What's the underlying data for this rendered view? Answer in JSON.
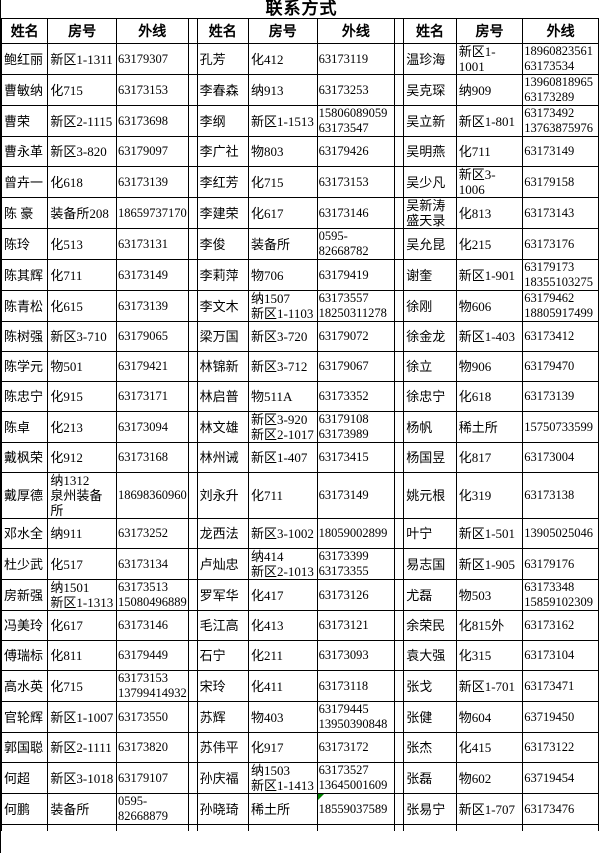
{
  "title": "联系方式",
  "columns": [
    "姓名",
    "房号",
    "外线"
  ],
  "marker_color": "#008000",
  "groups": [
    {
      "rows": [
        {
          "name": "鲍红丽",
          "room": "新区1-1311",
          "phone": "63179307"
        },
        {
          "name": "曹敏纳",
          "room": "化715",
          "phone": "63173153"
        },
        {
          "name": "曹荣",
          "room": "新区2-1115",
          "phone": "63173698"
        },
        {
          "name": "曹永革",
          "room": "新区3-820",
          "phone": "63179097"
        },
        {
          "name": "曾卉一",
          "room": "化618",
          "phone": "63173139"
        },
        {
          "name": "陈 豪",
          "room": "装备所208",
          "phone": "18659737170"
        },
        {
          "name": "陈玲",
          "room": "化513",
          "phone": "63173131"
        },
        {
          "name": "陈其辉",
          "room": "化711",
          "phone": "63173149"
        },
        {
          "name": "陈青松",
          "room": "化615",
          "phone": "63173139"
        },
        {
          "name": "陈树强",
          "room": "新区3-710",
          "phone": "63179065"
        },
        {
          "name": "陈学元",
          "room": "物501",
          "phone": "63179421"
        },
        {
          "name": "陈忠宁",
          "room": "化915",
          "phone": "63173171"
        },
        {
          "name": "陈卓",
          "room": "化213",
          "phone": "63173094"
        },
        {
          "name": "戴枫荣",
          "room": "化912",
          "phone": "63173168"
        },
        {
          "name": "戴厚德",
          "room": "纳1312\n泉州装备所",
          "phone": "18698360960"
        },
        {
          "name": "邓水全",
          "room": "纳911",
          "phone": "63173252"
        },
        {
          "name": "杜少武",
          "room": "化517",
          "phone": "63173134"
        },
        {
          "name": "房新强",
          "room": "纳1501\n新区1-1313",
          "phone": "63173513\n15080496889"
        },
        {
          "name": "冯美玲",
          "room": "化617",
          "phone": "63173146"
        },
        {
          "name": "傅瑞标",
          "room": "化811",
          "phone": "63179449"
        },
        {
          "name": "高水英",
          "room": "化715",
          "phone": "63173153\n13799414932"
        },
        {
          "name": "官轮辉",
          "room": "新区1-1007",
          "phone": "63173550"
        },
        {
          "name": "郭国聪",
          "room": "新区2-1111",
          "phone": "63173820"
        },
        {
          "name": "何超",
          "room": "新区3-1018",
          "phone": "63179107"
        },
        {
          "name": "何鹏",
          "room": "装备所",
          "phone": "0595-\n82668879"
        }
      ]
    },
    {
      "rows": [
        {
          "name": "孔芳",
          "room": "化412",
          "phone": "63173119"
        },
        {
          "name": "李春森",
          "room": "纳913",
          "phone": "63173253"
        },
        {
          "name": "李纲",
          "room": "新区1-1513",
          "phone": "15806089059\n63173547"
        },
        {
          "name": "李广社",
          "room": "物803",
          "phone": "63179426"
        },
        {
          "name": "李红芳",
          "room": "化715",
          "phone": "63173153"
        },
        {
          "name": "李建荣",
          "room": "化617",
          "phone": "63173146"
        },
        {
          "name": "李俊",
          "room": "装备所",
          "phone": "0595-82668782"
        },
        {
          "name": "李莉萍",
          "room": "物706",
          "phone": "63179419"
        },
        {
          "name": "李文木",
          "room": "纳1507\n新区1-1103",
          "phone": "63173557\n18250311278"
        },
        {
          "name": "梁万国",
          "room": "新区3-720",
          "phone": "63179072"
        },
        {
          "name": "林锦新",
          "room": "新区3-712",
          "phone": "63179067"
        },
        {
          "name": "林启普",
          "room": "物511A",
          "phone": "63173352"
        },
        {
          "name": "林文雄",
          "room": "新区3-920\n新区2-1017",
          "phone": "63179108\n63173989"
        },
        {
          "name": "林州诫",
          "room": "新区1-407",
          "phone": "63173415"
        },
        {
          "name": "刘永升",
          "room": "化711",
          "phone": "63173149"
        },
        {
          "name": "龙西法",
          "room": "新区3-1002",
          "phone": "18059002899"
        },
        {
          "name": "卢灿忠",
          "room": "纳414\n新区2-1013",
          "phone": "63173399\n63173355"
        },
        {
          "name": "罗军华",
          "room": "化417",
          "phone": "63173126"
        },
        {
          "name": "毛江高",
          "room": "化413",
          "phone": "63173121"
        },
        {
          "name": "石宁",
          "room": "化211",
          "phone": "63173093"
        },
        {
          "name": "宋玲",
          "room": "化411",
          "phone": "63173118"
        },
        {
          "name": "苏辉",
          "room": "物403",
          "phone": "63179445\n13950390848"
        },
        {
          "name": "苏伟平",
          "room": "化917",
          "phone": "63173172"
        },
        {
          "name": "孙庆福",
          "room": "纳1503\n新区1-1413",
          "phone": "63173527\n13645001609"
        },
        {
          "name": "孙晓琦",
          "room": "稀土所",
          "phone": "18559037589",
          "marker": true
        }
      ]
    },
    {
      "rows": [
        {
          "name": "温珍海",
          "room": "新区1-1001",
          "phone": "18960823561\n63173534"
        },
        {
          "name": "吴克琛",
          "room": "纳909",
          "phone": "13960818965\n63173289"
        },
        {
          "name": "吴立新",
          "room": "新区1-801",
          "phone": "63173492\n13763875976"
        },
        {
          "name": "吴明燕",
          "room": "化711",
          "phone": "63173149"
        },
        {
          "name": "吴少凡",
          "room": "新区3-1006",
          "phone": "63179158"
        },
        {
          "name": "吴新涛\n盛天录",
          "room": "化813",
          "phone": "63173143"
        },
        {
          "name": "吴允昆",
          "room": "化215",
          "phone": "63173176"
        },
        {
          "name": "谢奎",
          "room": "新区1-901",
          "phone": "63179173\n18355103275"
        },
        {
          "name": "徐刚",
          "room": "物606",
          "phone": "63179462\n18805917499"
        },
        {
          "name": "徐金龙",
          "room": "新区1-403",
          "phone": "63173412"
        },
        {
          "name": "徐立",
          "room": "物906",
          "phone": "63179470"
        },
        {
          "name": "徐忠宁",
          "room": "化618",
          "phone": "63173139"
        },
        {
          "name": "杨帆",
          "room": "稀土所",
          "phone": "15750733599"
        },
        {
          "name": "杨国昱",
          "room": "化817",
          "phone": "63173004"
        },
        {
          "name": "姚元根",
          "room": "化319",
          "phone": "63173138"
        },
        {
          "name": "叶宁",
          "room": "新区1-501",
          "phone": "13905025046"
        },
        {
          "name": "易志国",
          "room": "新区1-905",
          "phone": "63179176"
        },
        {
          "name": "尤磊",
          "room": "物503",
          "phone": "63173348\n15859102309"
        },
        {
          "name": "余荣民",
          "room": "化815外",
          "phone": "63173162"
        },
        {
          "name": "袁大强",
          "room": "化315",
          "phone": "63173104"
        },
        {
          "name": "张戈",
          "room": "新区1-701",
          "phone": "63173471"
        },
        {
          "name": "张健",
          "room": "物604",
          "phone": "63719450"
        },
        {
          "name": "张杰",
          "room": "化415",
          "phone": "63173122"
        },
        {
          "name": "张磊",
          "room": "物602",
          "phone": "63719454"
        },
        {
          "name": "张易宁",
          "room": "新区1-707",
          "phone": "63173476"
        }
      ]
    }
  ]
}
